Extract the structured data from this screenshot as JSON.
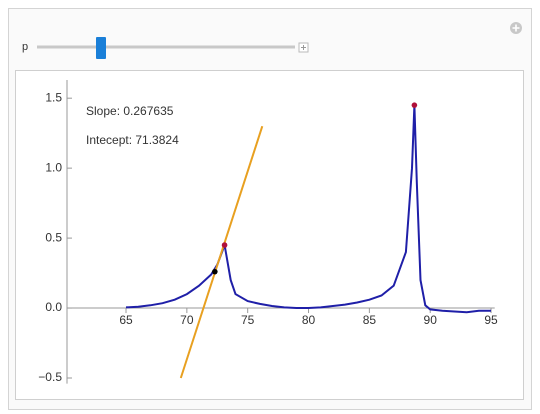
{
  "controls": {
    "label": "p"
  },
  "chart_data": {
    "type": "line",
    "annotations": [
      "Slope: 0.267635",
      "Intecept: 71.3824"
    ],
    "xlim": [
      60.15,
      95.3
    ],
    "ylim": [
      -0.54,
      1.63
    ],
    "xticks": [
      65,
      70,
      75,
      80,
      85,
      90,
      95
    ],
    "yticks": [
      {
        "value": -0.5,
        "label": "−0.5"
      },
      {
        "value": 0,
        "label": "0.0"
      },
      0.5,
      {
        "value": 1,
        "label": "1.0"
      },
      1.5
    ],
    "series": [
      {
        "type": "line",
        "color": "#1f1fa8",
        "x": [
          65,
          66,
          67,
          68,
          69,
          70,
          71,
          72,
          72.5,
          73.1,
          73.6,
          74,
          75,
          76,
          77,
          78,
          79,
          80,
          81,
          82,
          83,
          84,
          85,
          86,
          87,
          88,
          88.5,
          88.7,
          88.9,
          89.2,
          89.6,
          90,
          91,
          92,
          93,
          94,
          95
        ],
        "values": [
          0.005,
          0.01,
          0.02,
          0.035,
          0.06,
          0.1,
          0.16,
          0.24,
          0.31,
          0.45,
          0.2,
          0.1,
          0.05,
          0.03,
          0.015,
          0.005,
          0,
          0,
          0.005,
          0.015,
          0.025,
          0.04,
          0.06,
          0.09,
          0.16,
          0.4,
          1.0,
          1.45,
          0.9,
          0.2,
          0.02,
          -0.01,
          -0.02,
          -0.025,
          -0.03,
          -0.02,
          -0.02
        ]
      },
      {
        "type": "line",
        "color": "#e8a020",
        "x": [
          69.5,
          76.2
        ],
        "values": [
          -0.5,
          1.3
        ]
      },
      {
        "type": "scatter",
        "color": "#000000",
        "x": [
          72.3
        ],
        "values": [
          0.26
        ]
      },
      {
        "type": "scatter",
        "color": "#b0103a",
        "x": [
          73.1,
          88.7
        ],
        "values": [
          0.45,
          1.45
        ]
      }
    ]
  }
}
